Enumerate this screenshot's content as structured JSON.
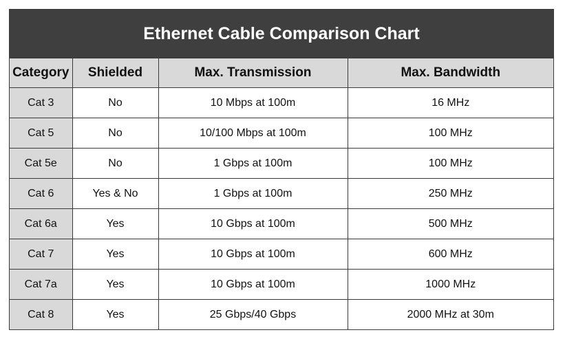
{
  "title": "Ethernet Cable Comparison Chart",
  "headers": [
    "Category",
    "Shielded",
    "Max. Transmission",
    "Max. Bandwidth"
  ],
  "rows": [
    [
      "Cat 3",
      "No",
      "10 Mbps at 100m",
      "16 MHz"
    ],
    [
      "Cat 5",
      "No",
      "10/100 Mbps at 100m",
      "100 MHz"
    ],
    [
      "Cat 5e",
      "No",
      "1 Gbps at 100m",
      "100 MHz"
    ],
    [
      "Cat 6",
      "Yes & No",
      "1 Gbps at 100m",
      "250 MHz"
    ],
    [
      "Cat 6a",
      "Yes",
      "10 Gbps at 100m",
      "500 MHz"
    ],
    [
      "Cat 7",
      "Yes",
      "10 Gbps at 100m",
      "600 MHz"
    ],
    [
      "Cat 7a",
      "Yes",
      "10 Gbps at 100m",
      "1000 MHz"
    ],
    [
      "Cat 8",
      "Yes",
      "25 Gbps/40 Gbps",
      "2000 MHz at 30m"
    ]
  ],
  "colors": {
    "title_background": "#3f3f3f",
    "header_background": "#d9d9d9",
    "category_background": "#d9d9d9"
  }
}
